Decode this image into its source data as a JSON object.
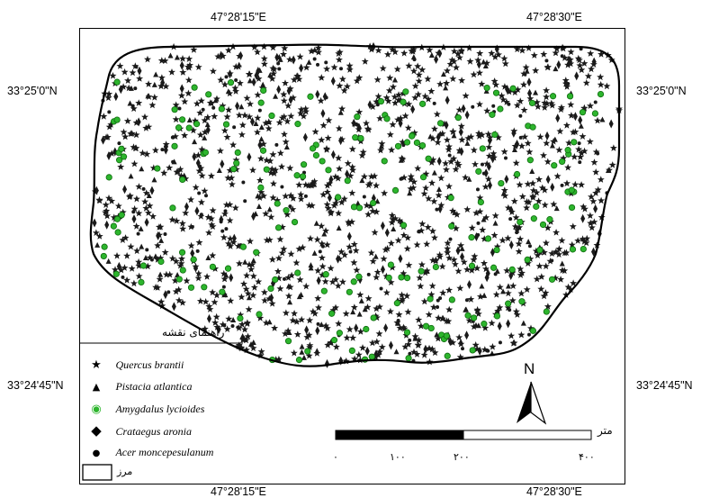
{
  "coordinates": {
    "top_left": "47°28'15\"E",
    "top_right": "47°28'30\"E",
    "bottom_left": "47°28'15\"E",
    "bottom_right": "47°28'30\"E",
    "left_upper": "33°25'0\"N",
    "left_lower": "33°24'45\"N",
    "right_upper": "33°25'0\"N",
    "right_lower": "33°24'45\"N"
  },
  "legend": {
    "title": "راهنمای نقشه",
    "items": [
      {
        "symbol": "★",
        "label": "Quercus brantii",
        "color": "#000000"
      },
      {
        "symbol": "▲",
        "label": "Pistacia atlantica",
        "color": "#000000"
      },
      {
        "symbol": "◉",
        "label": "Amygdalus lycioides",
        "color": "#2db52d"
      },
      {
        "symbol": "◆",
        "label": "Crataegus aronia",
        "color": "#000000"
      },
      {
        "symbol": "●",
        "label": "Acer moncepesulanum",
        "color": "#000000"
      }
    ],
    "boundary_label": "مرز"
  },
  "scale_bar": {
    "unit": "متر",
    "ticks": [
      "۰",
      "۱۰۰",
      "۲۰۰",
      "۴۰۰"
    ]
  },
  "north_arrow": {
    "label": "N"
  },
  "colors": {
    "frame": "#000000",
    "boundary": "#000000",
    "amygdalus": "#2db52d",
    "marker": "#1a1a1a"
  }
}
